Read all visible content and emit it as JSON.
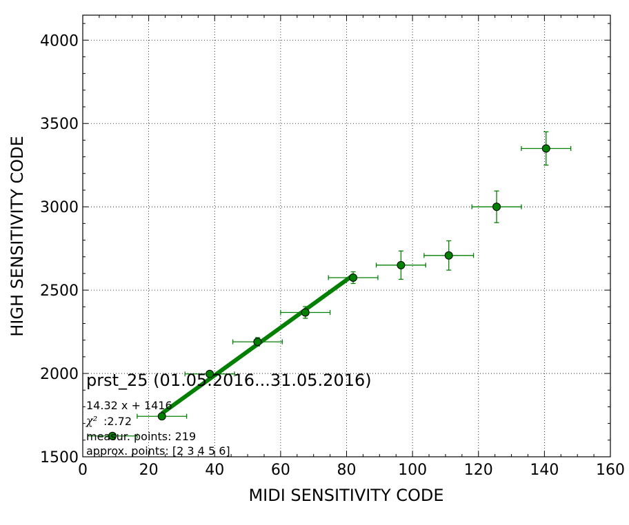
{
  "chart_data": {
    "type": "scatter",
    "xlabel": "MIDI SENSITIVITY CODE",
    "ylabel": "HIGH SENSITIVITY CODE",
    "xlim": [
      0,
      160
    ],
    "ylim": [
      1500,
      4150
    ],
    "xticks": [
      0,
      20,
      40,
      60,
      80,
      100,
      120,
      140,
      160
    ],
    "yticks": [
      1500,
      2000,
      2500,
      3000,
      3500,
      4000
    ],
    "xtick_labels": [
      "0",
      "20",
      "40",
      "60",
      "80",
      "100",
      "120",
      "140",
      "160"
    ],
    "ytick_labels": [
      "1500",
      "2000",
      "2500",
      "3000",
      "3500",
      "4000"
    ],
    "grid": true,
    "series": [
      {
        "type": "errorbar",
        "color": "#007f00",
        "points": [
          {
            "x": 9,
            "y": 1625,
            "xerr": 7.5,
            "yerr": 5
          },
          {
            "x": 24,
            "y": 1743,
            "xerr": 7.5,
            "yerr": 10
          },
          {
            "x": 38.5,
            "y": 1997,
            "xerr": 7.5,
            "yerr": 15
          },
          {
            "x": 53,
            "y": 2190,
            "xerr": 7.5,
            "yerr": 25
          },
          {
            "x": 67.5,
            "y": 2366,
            "xerr": 7.5,
            "yerr": 35
          },
          {
            "x": 82,
            "y": 2575,
            "xerr": 7.5,
            "yerr": 35
          },
          {
            "x": 96.5,
            "y": 2650,
            "xerr": 7.5,
            "yerr": 85
          },
          {
            "x": 111,
            "y": 2708,
            "xerr": 7.5,
            "yerr": 88
          },
          {
            "x": 125.5,
            "y": 3000,
            "xerr": 7.5,
            "yerr": 95
          },
          {
            "x": 140.5,
            "y": 3350,
            "xerr": 7.5,
            "yerr": 100
          }
        ]
      },
      {
        "type": "line",
        "color": "#007f00",
        "x": [
          24,
          82
        ],
        "y": [
          1760,
          2590
        ]
      }
    ],
    "annotations": {
      "title": "prst_25 (01.05.2016...31.05.2016)",
      "fit": "14.32 x + 1416",
      "chi_symbol": "χ²",
      "chi_value": ":2.72",
      "measur": "measur. points: 219",
      "approx": "approx. points: [2 3 4 5 6]"
    }
  }
}
